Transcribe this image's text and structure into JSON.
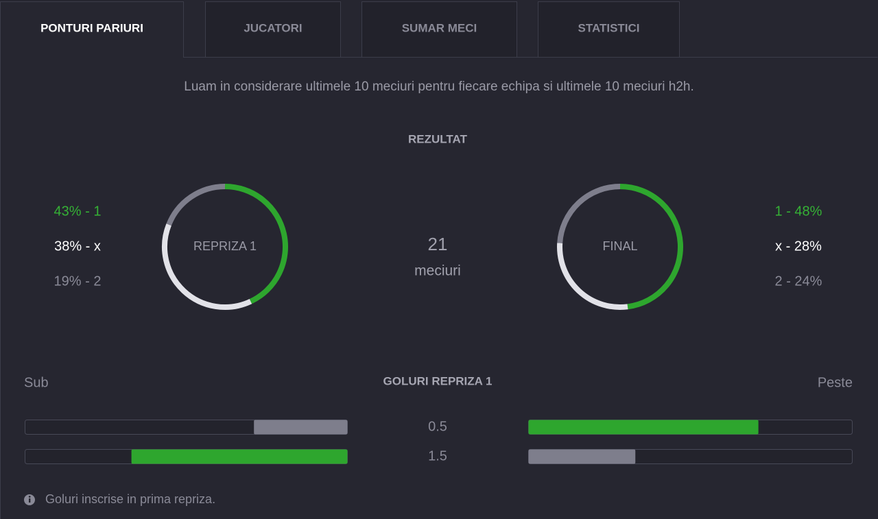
{
  "tabs": [
    "PONTURI PARIURI",
    "JUCATORI",
    "SUMAR MECI",
    "STATISTICI"
  ],
  "intro": "Luam in considerare ultimele 10 meciuri pentru fiecare echipa si ultimele 10 meciuri h2h.",
  "result": {
    "title": "REZULTAT",
    "colors": [
      "#2ea62e",
      "#e2e2e8",
      "#7e7e8c"
    ],
    "text_colors": [
      "#35b135",
      "#ffffff",
      "#8a8a97"
    ],
    "matches": {
      "count": "21",
      "label": "meciuri"
    },
    "donuts": [
      {
        "label": "REPRIZA 1",
        "values": [
          43,
          38,
          19
        ],
        "value_labels": [
          "43% - 1",
          "38% - x",
          "19% - 2"
        ]
      },
      {
        "label": "FINAL",
        "values": [
          48,
          28,
          24
        ],
        "value_labels": [
          "1 - 48%",
          "x - 28%",
          "2 - 24%"
        ]
      }
    ]
  },
  "goals": {
    "title": "GOLURI REPRIZA 1",
    "left_label": "Sub",
    "right_label": "Peste",
    "colors": {
      "high": "#2ea62e",
      "low": "#7e7e8c"
    },
    "rows": [
      {
        "line": "0.5",
        "under": 29,
        "over": 71
      },
      {
        "line": "1.5",
        "under": 67,
        "over": 33
      }
    ],
    "note": "Goluri inscrise in prima repriza."
  }
}
